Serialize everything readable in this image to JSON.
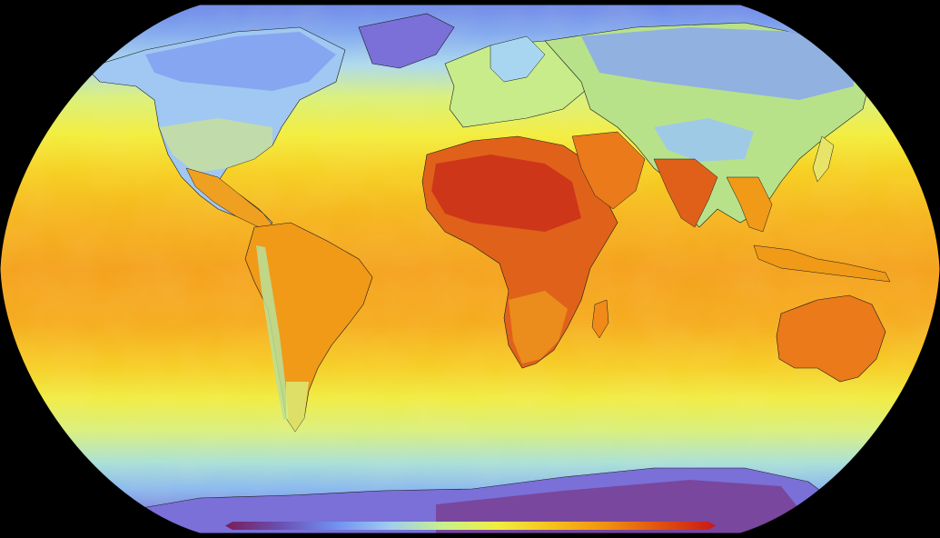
{
  "map": {
    "projection": "Robinson",
    "variable_shown": "temperature",
    "background_color": "#000000",
    "coastline_color": "#1a1a1a"
  },
  "colorbar": {
    "colormap": [
      "#7a1d5a",
      "#6a4fb0",
      "#6f8ff0",
      "#9ecbf0",
      "#c8f08c",
      "#f0ee40",
      "#f5c21a",
      "#f09010",
      "#e05010",
      "#c81818"
    ],
    "ticks_visible": false
  }
}
